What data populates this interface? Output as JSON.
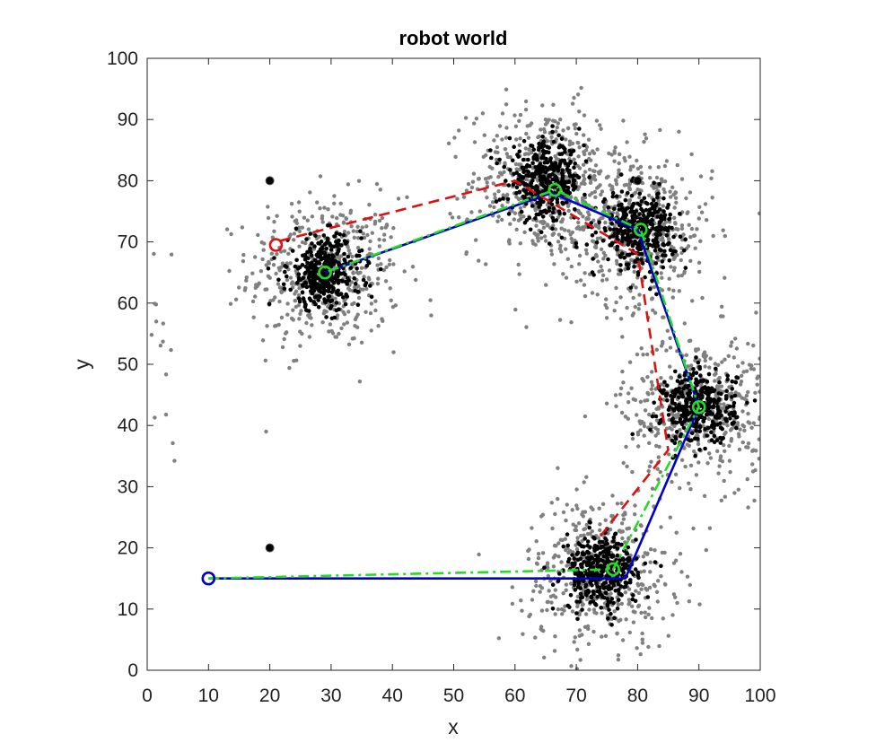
{
  "chart_data": {
    "type": "scatter",
    "title": "robot world",
    "xlabel": "x",
    "ylabel": "y",
    "xlim": [
      0,
      100
    ],
    "ylim": [
      0,
      100
    ],
    "xticks": [
      "0",
      "10",
      "20",
      "30",
      "40",
      "50",
      "60",
      "70",
      "80",
      "90",
      "100"
    ],
    "yticks": [
      "0",
      "10",
      "20",
      "30",
      "40",
      "50",
      "60",
      "70",
      "80",
      "90",
      "100"
    ],
    "grid": false,
    "colors": {
      "dense_particles": "#000000",
      "sparse_particles": "#808080",
      "blue_path": "#0000cc",
      "red_path": "#dd1111",
      "green_path": "#22dd22"
    },
    "clusters": [
      {
        "x": 29,
        "y": 65
      },
      {
        "x": 65,
        "y": 80
      },
      {
        "x": 80,
        "y": 72
      },
      {
        "x": 90,
        "y": 43
      },
      {
        "x": 74,
        "y": 16
      }
    ],
    "landmarks": [
      {
        "x": 20,
        "y": 80
      },
      {
        "x": 20,
        "y": 20
      },
      {
        "x": 80,
        "y": 80
      }
    ],
    "series": [
      {
        "style": "solid-blue",
        "x": [
          10,
          78,
          90,
          80,
          66,
          29
        ],
        "y": [
          15,
          15,
          43,
          72,
          78,
          65
        ]
      },
      {
        "style": "dashed-red",
        "x": [
          74,
          85,
          80,
          70,
          60,
          21
        ],
        "y": [
          22,
          36,
          68,
          74,
          80,
          70
        ]
      },
      {
        "style": "dashdot-green",
        "x": [
          10,
          76,
          90,
          80.5,
          66.5,
          29
        ],
        "y": [
          15,
          16.5,
          43,
          72,
          78.5,
          65
        ]
      }
    ],
    "markers": [
      {
        "x": 10,
        "y": 15,
        "color": "#0000cc"
      },
      {
        "x": 21,
        "y": 69.5,
        "color": "#dd1111"
      },
      {
        "x": 29,
        "y": 65,
        "color": "#22dd22"
      },
      {
        "x": 66.5,
        "y": 78.5,
        "color": "#22dd22"
      },
      {
        "x": 80.5,
        "y": 72,
        "color": "#22dd22"
      },
      {
        "x": 90,
        "y": 43,
        "color": "#22dd22"
      },
      {
        "x": 76,
        "y": 16.5,
        "color": "#22dd22"
      }
    ]
  }
}
